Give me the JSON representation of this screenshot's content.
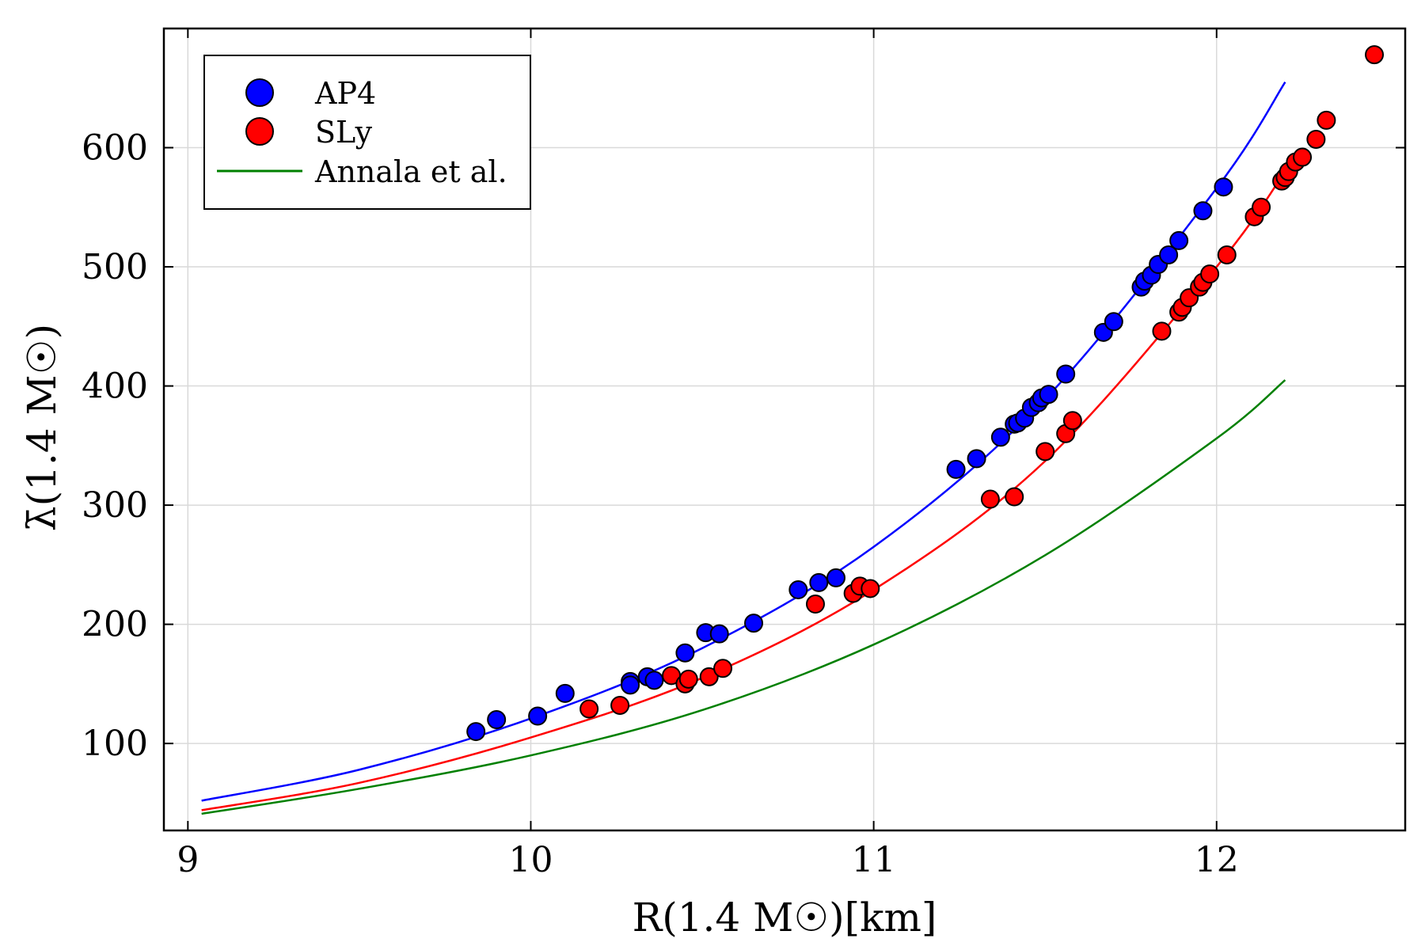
{
  "chart_data": {
    "type": "scatter",
    "title": "",
    "xlabel": "R(1.4 M☉)[km]",
    "ylabel": "λ̄(1.4 M☉)",
    "xlim": [
      8.93,
      12.55
    ],
    "ylim": [
      27,
      700
    ],
    "x_ticks": [
      9,
      10,
      11,
      12
    ],
    "y_ticks": [
      100,
      200,
      300,
      400,
      500,
      600
    ],
    "x_tick_labels": [
      "9",
      "10",
      "11",
      "12"
    ],
    "y_tick_labels": [
      "100",
      "200",
      "300",
      "400",
      "500",
      "600"
    ],
    "grid": true,
    "legend_position": "top-left",
    "series": [
      {
        "name": "AP4",
        "kind": "scatter",
        "color": "#0000ff",
        "points": [
          [
            9.84,
            110
          ],
          [
            9.9,
            120
          ],
          [
            10.02,
            123
          ],
          [
            10.1,
            142
          ],
          [
            10.29,
            152
          ],
          [
            10.29,
            149
          ],
          [
            10.34,
            156
          ],
          [
            10.36,
            153
          ],
          [
            10.45,
            176
          ],
          [
            10.51,
            193
          ],
          [
            10.55,
            192
          ],
          [
            10.65,
            201
          ],
          [
            10.78,
            229
          ],
          [
            10.84,
            235
          ],
          [
            10.89,
            239
          ],
          [
            11.24,
            330
          ],
          [
            11.3,
            339
          ],
          [
            11.37,
            357
          ],
          [
            11.41,
            368
          ],
          [
            11.42,
            369
          ],
          [
            11.44,
            373
          ],
          [
            11.46,
            382
          ],
          [
            11.48,
            386
          ],
          [
            11.49,
            390
          ],
          [
            11.51,
            393
          ],
          [
            11.56,
            410
          ],
          [
            11.67,
            445
          ],
          [
            11.7,
            454
          ],
          [
            11.78,
            483
          ],
          [
            11.79,
            488
          ],
          [
            11.81,
            493
          ],
          [
            11.83,
            502
          ],
          [
            11.86,
            510
          ],
          [
            11.89,
            522
          ],
          [
            11.96,
            547
          ],
          [
            12.02,
            567
          ]
        ]
      },
      {
        "name": "SLy",
        "kind": "scatter",
        "color": "#ff0000",
        "points": [
          [
            10.17,
            129
          ],
          [
            10.26,
            132
          ],
          [
            10.41,
            157
          ],
          [
            10.45,
            150
          ],
          [
            10.46,
            154
          ],
          [
            10.52,
            156
          ],
          [
            10.56,
            163
          ],
          [
            10.83,
            217
          ],
          [
            10.94,
            226
          ],
          [
            10.96,
            232
          ],
          [
            10.99,
            230
          ],
          [
            11.34,
            305
          ],
          [
            11.41,
            307
          ],
          [
            11.5,
            345
          ],
          [
            11.56,
            360
          ],
          [
            11.58,
            371
          ],
          [
            11.84,
            446
          ],
          [
            11.89,
            462
          ],
          [
            11.9,
            466
          ],
          [
            11.92,
            474
          ],
          [
            11.95,
            483
          ],
          [
            11.96,
            487
          ],
          [
            11.98,
            494
          ],
          [
            12.03,
            510
          ],
          [
            12.11,
            542
          ],
          [
            12.13,
            550
          ],
          [
            12.19,
            572
          ],
          [
            12.2,
            575
          ],
          [
            12.21,
            580
          ],
          [
            12.23,
            588
          ],
          [
            12.25,
            592
          ],
          [
            12.29,
            607
          ],
          [
            12.32,
            623
          ],
          [
            12.46,
            678
          ]
        ]
      },
      {
        "name": "Annala et al.",
        "kind": "line",
        "color": "#008000"
      }
    ],
    "fit_curves": [
      {
        "series": "AP4",
        "color": "#0000ff",
        "x": [
          9.04,
          9.5,
          10.0,
          10.5,
          11.0,
          11.5,
          12.0,
          12.2
        ],
        "y": [
          52,
          78,
          121,
          180,
          265,
          389,
          566,
          655
        ]
      },
      {
        "series": "SLy",
        "color": "#ff0000",
        "x": [
          9.04,
          9.5,
          10.0,
          10.5,
          11.0,
          11.5,
          12.0,
          12.2
        ],
        "y": [
          44,
          67,
          105,
          155,
          229,
          337,
          500,
          580
        ]
      },
      {
        "series": "Annala et al.",
        "color": "#008000",
        "x": [
          9.04,
          9.5,
          10.0,
          10.5,
          11.0,
          11.5,
          12.0,
          12.2
        ],
        "y": [
          41,
          62,
          90,
          128,
          183,
          258,
          356,
          405
        ]
      }
    ]
  }
}
